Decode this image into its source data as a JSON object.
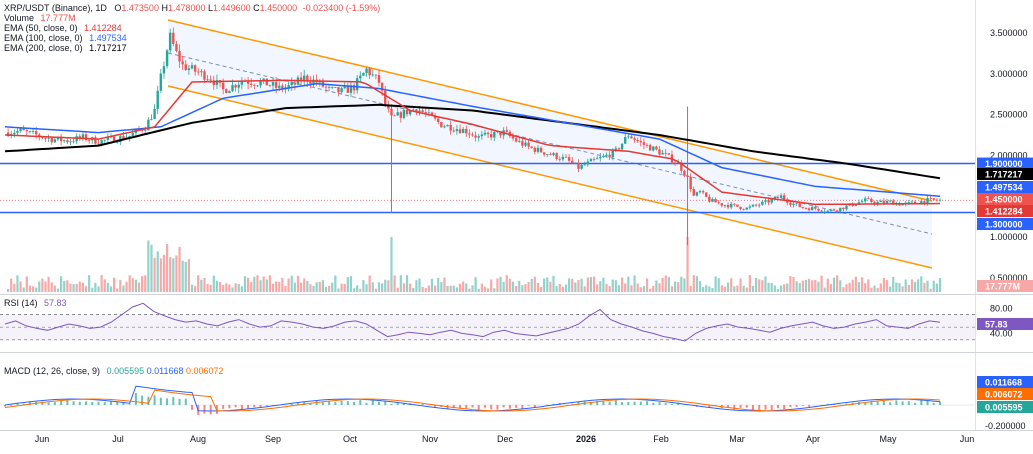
{
  "header": {
    "symbol": "XRP/USDT (Binance), 1D",
    "ohlc": [
      {
        "key": "O",
        "value": "1.473500"
      },
      {
        "key": "H",
        "value": "1.478000"
      },
      {
        "key": "L",
        "value": "1.449600"
      },
      {
        "key": "C",
        "value": "1.450000"
      },
      {
        "key": "chg",
        "value": "-0.023400 (-1.59%)"
      }
    ],
    "volume_label": "Volume",
    "volume_value": "17.777M",
    "ema50_label": "EMA (50, close, 0)",
    "ema50_value": "1.412284",
    "ema100_label": "EMA (100, close, 0)",
    "ema100_value": "1.497534",
    "ema200_label": "EMA (200, close, 0)",
    "ema200_value": "1.717217"
  },
  "rsi_label": "RSI (14)",
  "rsi_value": "57.83",
  "macd_label": "MACD (12, 26, close, 9)",
  "macd_values": [
    "0.005595",
    "0.011668",
    "0.006072"
  ],
  "colors": {
    "up": "#26a69a",
    "down": "#ef5350",
    "ema50": "#e53935",
    "ema100": "#2962ff",
    "ema200": "#000000",
    "channel": "#ff9800",
    "hline": "#2962ff",
    "rsi": "#7e57c2",
    "macd": "#2962ff",
    "signal": "#ff6d00"
  },
  "chart_data": [
    {
      "type": "candlestick",
      "title": "XRP/USDT (Binance), 1D",
      "x_months": [
        "Jun",
        "Jul",
        "Aug",
        "Sep",
        "Oct",
        "Nov",
        "Dec",
        "2026",
        "Feb",
        "Mar",
        "Apr",
        "May",
        "Jun"
      ],
      "y_ticks": [
        "3.500000",
        "3.000000",
        "2.500000",
        "2.000000",
        "1.000000",
        "0.500000"
      ],
      "ylim": [
        0.3,
        3.8
      ],
      "last_close": "1.450000",
      "horizontal_levels": [
        "1.900000",
        "1.300000"
      ],
      "price_path": [
        [
          0,
          2.28
        ],
        [
          5,
          2.3
        ],
        [
          10,
          2.25
        ],
        [
          15,
          2.2
        ],
        [
          20,
          2.18
        ],
        [
          25,
          2.22
        ],
        [
          30,
          2.17
        ],
        [
          35,
          2.2
        ],
        [
          40,
          2.24
        ],
        [
          45,
          2.35
        ],
        [
          48,
          2.55
        ],
        [
          50,
          2.95
        ],
        [
          52,
          3.3
        ],
        [
          53,
          3.45
        ],
        [
          55,
          3.25
        ],
        [
          57,
          3.1
        ],
        [
          60,
          3.05
        ],
        [
          63,
          3.0
        ],
        [
          66,
          2.95
        ],
        [
          70,
          2.8
        ],
        [
          73,
          2.85
        ],
        [
          76,
          2.92
        ],
        [
          80,
          2.9
        ],
        [
          84,
          2.88
        ],
        [
          88,
          2.82
        ],
        [
          92,
          2.85
        ],
        [
          96,
          2.95
        ],
        [
          100,
          2.9
        ],
        [
          104,
          2.8
        ],
        [
          108,
          2.78
        ],
        [
          112,
          2.84
        ],
        [
          116,
          3.05
        ],
        [
          120,
          2.9
        ],
        [
          122,
          2.62
        ],
        [
          124,
          2.45
        ],
        [
          128,
          2.52
        ],
        [
          132,
          2.58
        ],
        [
          136,
          2.48
        ],
        [
          140,
          2.38
        ],
        [
          144,
          2.34
        ],
        [
          148,
          2.3
        ],
        [
          152,
          2.22
        ],
        [
          156,
          2.25
        ],
        [
          160,
          2.28
        ],
        [
          164,
          2.18
        ],
        [
          168,
          2.1
        ],
        [
          172,
          2.05
        ],
        [
          176,
          2.0
        ],
        [
          180,
          1.95
        ],
        [
          184,
          1.85
        ],
        [
          188,
          1.92
        ],
        [
          192,
          1.98
        ],
        [
          196,
          2.05
        ],
        [
          200,
          2.25
        ],
        [
          204,
          2.15
        ],
        [
          208,
          2.08
        ],
        [
          212,
          2.0
        ],
        [
          216,
          1.9
        ],
        [
          219,
          1.72
        ],
        [
          221,
          1.5
        ],
        [
          223,
          1.55
        ],
        [
          226,
          1.45
        ],
        [
          230,
          1.4
        ],
        [
          234,
          1.38
        ],
        [
          238,
          1.35
        ],
        [
          242,
          1.4
        ],
        [
          246,
          1.45
        ],
        [
          249,
          1.5
        ],
        [
          252,
          1.42
        ],
        [
          256,
          1.36
        ],
        [
          260,
          1.35
        ],
        [
          264,
          1.32
        ],
        [
          268,
          1.35
        ],
        [
          272,
          1.4
        ],
        [
          276,
          1.45
        ],
        [
          280,
          1.42
        ],
        [
          284,
          1.43
        ],
        [
          288,
          1.4
        ],
        [
          292,
          1.42
        ],
        [
          296,
          1.45
        ],
        [
          300,
          1.45
        ]
      ],
      "series": [
        {
          "name": "EMA (50, close, 0)",
          "last": "1.412284"
        },
        {
          "name": "EMA (100, close, 0)",
          "last": "1.497534"
        },
        {
          "name": "EMA (200, close, 0)",
          "last": "1.717217"
        }
      ],
      "ema200_path": [
        [
          0,
          2.05
        ],
        [
          30,
          2.12
        ],
        [
          60,
          2.4
        ],
        [
          90,
          2.58
        ],
        [
          120,
          2.62
        ],
        [
          150,
          2.55
        ],
        [
          180,
          2.4
        ],
        [
          210,
          2.25
        ],
        [
          240,
          2.05
        ],
        [
          270,
          1.9
        ],
        [
          300,
          1.72
        ]
      ],
      "ema100_path": [
        [
          0,
          2.35
        ],
        [
          30,
          2.28
        ],
        [
          50,
          2.35
        ],
        [
          70,
          2.7
        ],
        [
          100,
          2.88
        ],
        [
          120,
          2.82
        ],
        [
          150,
          2.6
        ],
        [
          180,
          2.4
        ],
        [
          210,
          2.2
        ],
        [
          230,
          1.85
        ],
        [
          260,
          1.62
        ],
        [
          300,
          1.5
        ]
      ],
      "ema50_path": [
        [
          0,
          2.25
        ],
        [
          30,
          2.2
        ],
        [
          48,
          2.35
        ],
        [
          60,
          2.9
        ],
        [
          90,
          2.92
        ],
        [
          115,
          2.9
        ],
        [
          130,
          2.55
        ],
        [
          150,
          2.38
        ],
        [
          175,
          2.12
        ],
        [
          200,
          2.05
        ],
        [
          215,
          1.95
        ],
        [
          230,
          1.55
        ],
        [
          260,
          1.4
        ],
        [
          300,
          1.41
        ]
      ]
    },
    {
      "type": "bar",
      "name": "Volume",
      "last": "17.777M"
    },
    {
      "type": "line",
      "name": "RSI (14)",
      "ylim": [
        20,
        90
      ],
      "y_ticks": [
        "80.00",
        "40.00"
      ],
      "last": "57.83",
      "values": [
        55,
        60,
        52,
        48,
        45,
        50,
        55,
        52,
        48,
        50,
        58,
        70,
        82,
        88,
        75,
        68,
        62,
        58,
        60,
        55,
        52,
        58,
        62,
        55,
        50,
        52,
        60,
        58,
        55,
        50,
        48,
        52,
        58,
        60,
        55,
        45,
        35,
        38,
        42,
        40,
        38,
        42,
        45,
        40,
        38,
        35,
        42,
        45,
        40,
        38,
        36,
        40,
        44,
        48,
        55,
        68,
        78,
        62,
        55,
        50,
        44,
        40,
        35,
        32,
        28,
        40,
        48,
        52,
        55,
        50,
        48,
        45,
        42,
        48,
        52,
        55,
        58,
        52,
        48,
        50,
        55,
        58,
        62,
        52,
        50,
        48,
        55,
        60,
        57.83
      ]
    },
    {
      "type": "line",
      "name": "MACD (12, 26, close, 9)",
      "y_ticks": [
        "-0.200000"
      ],
      "last_values": [
        "0.011668",
        "0.006072",
        "0.005595"
      ]
    }
  ]
}
